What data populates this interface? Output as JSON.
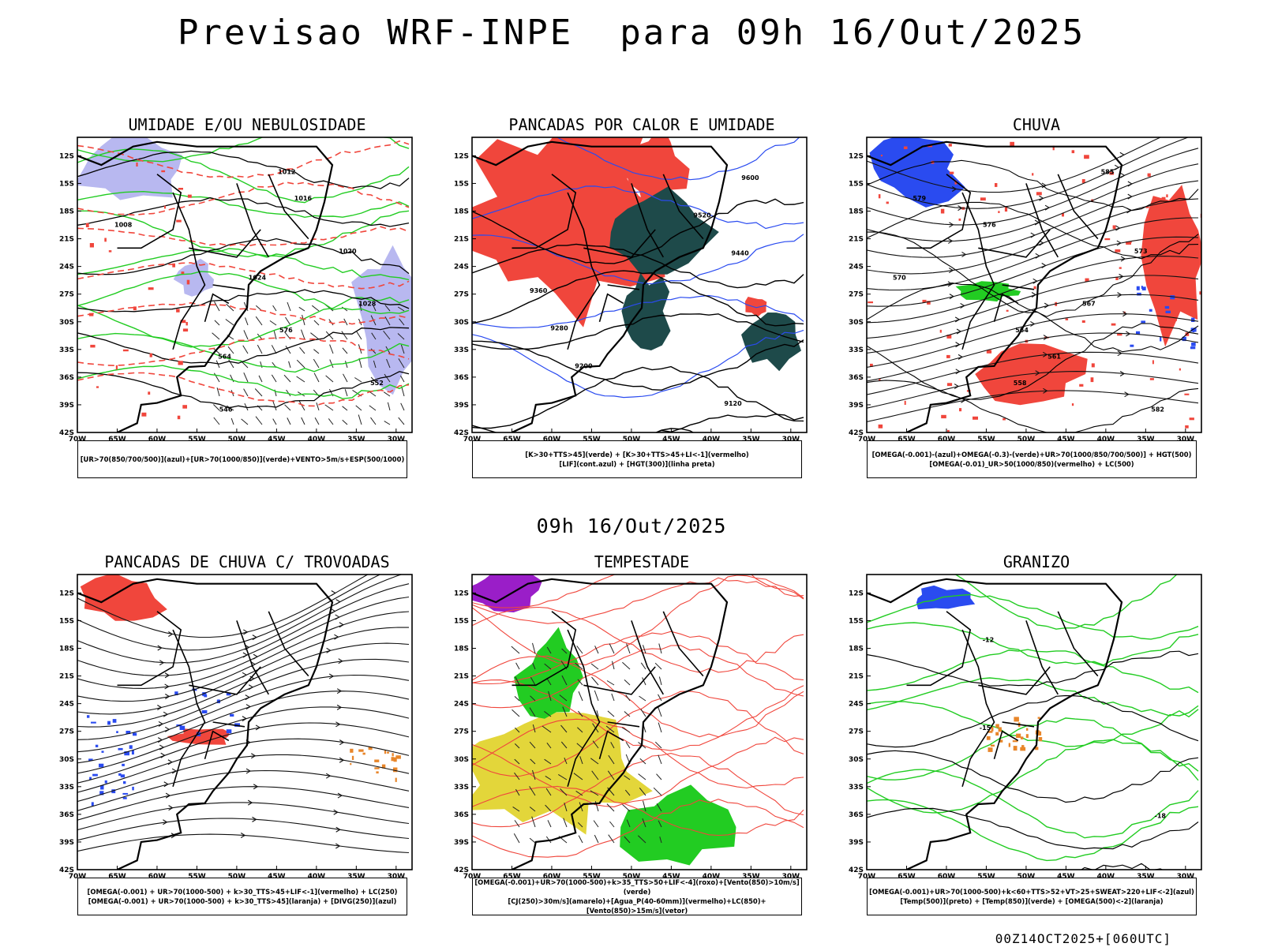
{
  "header": {
    "title": "Previsao WRF-INPE  para 09h 16/Out/2025",
    "subtitle": "09h 16/Out/2025",
    "footer": "00Z14OCT2025+[060UTC]"
  },
  "axes": {
    "lat_labels": [
      "12S",
      "15S",
      "18S",
      "21S",
      "24S",
      "27S",
      "30S",
      "33S",
      "36S",
      "39S",
      "42S"
    ],
    "lon_labels": [
      "70W",
      "65W",
      "60W",
      "55W",
      "50W",
      "45W",
      "40W",
      "35W",
      "30W"
    ]
  },
  "colors": {
    "red": "#f0463c",
    "green": "#22cc22",
    "blue": "#2a4bf0",
    "lavender": "#b8b8f0",
    "dark_teal": "#1e4a4a",
    "yellow": "#e3d63a",
    "purple": "#9a1ec8",
    "orange": "#e8862a"
  },
  "panels": [
    {
      "id": "umidade",
      "title": "UMIDADE E/OU NEBULOSIDADE",
      "legend": [
        "[UR>70(850/700/500)](azul)+[UR>70(1000/850)](verde)+VENTO>5m/s+ESP(500/1000)"
      ],
      "contour_labels": [
        "1012",
        "1016",
        "1008",
        "1020",
        "1024",
        "1028",
        "576",
        "564",
        "552",
        "546"
      ]
    },
    {
      "id": "pancadas-calor",
      "title": "PANCADAS POR CALOR E UMIDADE",
      "legend": [
        "[K>30+TTS>45](verde) + [K>30+TTS>45+LI<-1](vermelho)",
        "[LIF](cont.azul) + [HGT(300)](linha preta)"
      ],
      "contour_labels": [
        "9600",
        "9520",
        "9440",
        "9360",
        "9280",
        "9200",
        "9120"
      ]
    },
    {
      "id": "chuva",
      "title": "CHUVA",
      "legend": [
        "[OMEGA(-0.001)-(azul)+OMEGA(-0.3)-(verde)+UR>70(1000/850/700/500)] + HGT(500)",
        "[OMEGA(-0.01)_UR>50(1000/850)(vermelho) + LC(500)"
      ],
      "contour_labels": [
        "585",
        "579",
        "576",
        "573",
        "570",
        "567",
        "564",
        "561",
        "558",
        "582"
      ]
    },
    {
      "id": "trovoadas",
      "title": "PANCADAS DE CHUVA C/ TROVOADAS",
      "legend": [
        "[OMEGA(-0.001) + UR>70(1000-500) + k>30_TTS>45+LIF<-1](vermelho) + LC(250)",
        "[OMEGA(-0.001) + UR>70(1000-500) + k>30_TTS>45](laranja) + [DIVG(250)](azul)"
      ],
      "contour_labels": []
    },
    {
      "id": "tempestade",
      "title": "TEMPESTADE",
      "legend": [
        "[OMEGA(-0.001)+UR>70(1000-500)+k>35_TTS>50+LIF<-4](roxo)+[Vento(850)>10m/s](verde)",
        "[CJ(250)>30m/s](amarelo)+[Agua_P(40-60mm)](vermelho)+LC(850)+[Vento(850)>15m/s](vetor)"
      ],
      "contour_labels": []
    },
    {
      "id": "granizo",
      "title": "GRANIZO",
      "legend": [
        "[OMEGA(-0.001)+UR>70(1000-500)+k<60+TTS>52+VT>25+SWEAT>220+LIF<-2](azul)",
        "[Temp(500)](preto) + [Temp(850)](verde) + [OMEGA(500)<-2](laranja)"
      ],
      "contour_labels": [
        "-12",
        "-15",
        "-18"
      ]
    }
  ]
}
